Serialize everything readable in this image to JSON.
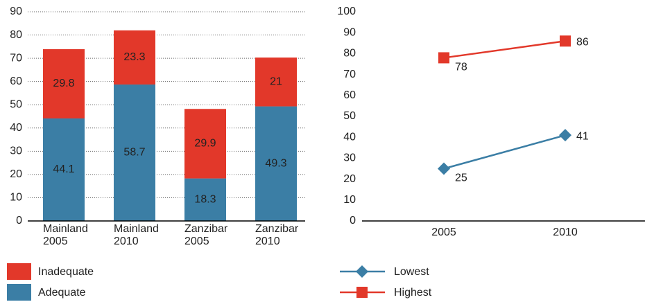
{
  "chart_data": [
    {
      "type": "stacked-bar",
      "categories": [
        "Mainland 2005",
        "Mainland 2010",
        "Zanzibar 2005",
        "Zanzibar 2010"
      ],
      "series": [
        {
          "name": "Adequate",
          "color": "#3b7ea5",
          "values": [
            44.1,
            58.7,
            18.3,
            49.3
          ]
        },
        {
          "name": "Inadequate",
          "color": "#e2382a",
          "values": [
            29.8,
            23.3,
            29.9,
            21
          ]
        }
      ],
      "ylim": [
        0,
        90
      ],
      "yticks": [
        0,
        10,
        20,
        30,
        40,
        50,
        60,
        70,
        80,
        90
      ],
      "grid": true
    },
    {
      "type": "line",
      "categories": [
        "2005",
        "2010"
      ],
      "series": [
        {
          "name": "Lowest",
          "color": "#3b7ea5",
          "marker": "diamond",
          "values": [
            25,
            41
          ]
        },
        {
          "name": "Highest",
          "color": "#e2382a",
          "marker": "square",
          "values": [
            78,
            86
          ]
        }
      ],
      "ylim": [
        0,
        100
      ],
      "yticks": [
        0,
        10,
        20,
        30,
        40,
        50,
        60,
        70,
        80,
        90,
        100
      ],
      "grid": false
    }
  ]
}
